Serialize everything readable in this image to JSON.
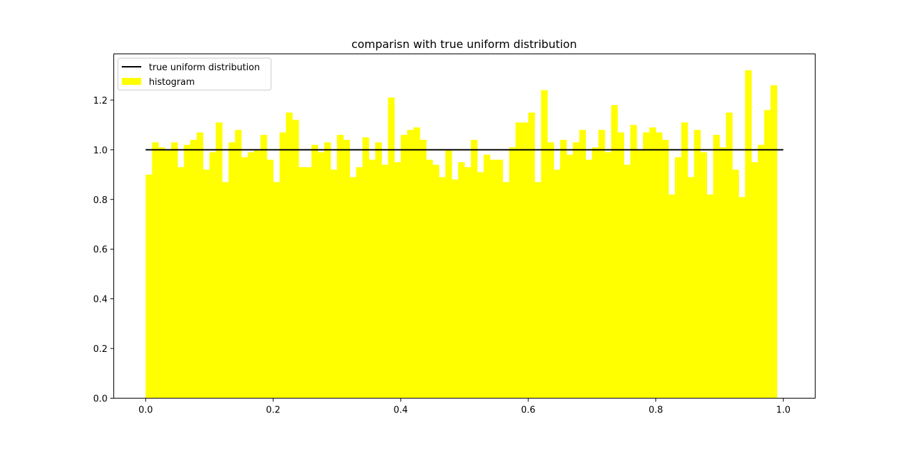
{
  "chart_data": {
    "type": "bar",
    "title": "comparisn with true uniform distribution",
    "xlabel": "",
    "ylabel": "",
    "xlim": [
      -0.05,
      1.05
    ],
    "ylim": [
      0.0,
      1.386
    ],
    "grid": false,
    "legend_position": "top-left",
    "x_ticks": [
      "0.0",
      "0.2",
      "0.4",
      "0.6",
      "0.8",
      "1.0"
    ],
    "y_ticks": [
      "0.0",
      "0.2",
      "0.4",
      "0.6",
      "0.8",
      "1.0",
      "1.2"
    ],
    "series": [
      {
        "name": "true uniform distribution",
        "kind": "line",
        "color": "#000000",
        "x": [
          0.0,
          1.0
        ],
        "y": [
          1.0,
          1.0
        ]
      },
      {
        "name": "histogram",
        "kind": "bar",
        "color": "#ffff00",
        "bin_width": 0.01,
        "bin_start": 0.0,
        "values": [
          0.9,
          1.03,
          1.01,
          1.0,
          1.03,
          0.93,
          1.02,
          1.04,
          1.07,
          0.92,
          0.99,
          1.11,
          0.87,
          1.03,
          1.08,
          0.97,
          0.99,
          1.0,
          1.06,
          0.96,
          0.87,
          1.07,
          1.15,
          1.12,
          0.93,
          0.93,
          1.02,
          0.99,
          1.03,
          0.92,
          1.06,
          1.04,
          0.89,
          0.93,
          1.05,
          0.96,
          1.03,
          0.94,
          1.21,
          0.95,
          1.06,
          1.08,
          1.09,
          1.04,
          0.96,
          0.94,
          0.89,
          1.0,
          0.88,
          0.95,
          0.93,
          1.04,
          0.91,
          0.98,
          0.96,
          0.96,
          0.87,
          1.01,
          1.11,
          1.11,
          1.15,
          0.87,
          1.24,
          1.03,
          0.92,
          1.04,
          0.98,
          1.03,
          1.08,
          0.96,
          1.01,
          1.08,
          0.99,
          1.18,
          1.07,
          0.94,
          1.1,
          1.0,
          1.07,
          1.09,
          1.07,
          1.04,
          0.82,
          0.97,
          1.11,
          0.89,
          1.08,
          0.99,
          0.82,
          1.06,
          1.01,
          1.15,
          0.92,
          0.81,
          1.32,
          0.95,
          1.02,
          1.16,
          1.26
        ]
      }
    ]
  }
}
